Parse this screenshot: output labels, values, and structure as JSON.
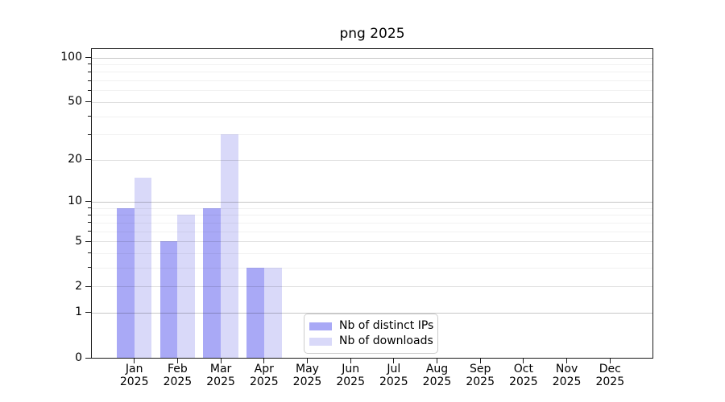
{
  "title": "png 2025",
  "chart_data": {
    "type": "bar",
    "title": "png 2025",
    "categories": [
      "Jan 2025",
      "Feb 2025",
      "Mar 2025",
      "Apr 2025",
      "May 2025",
      "Jun 2025",
      "Jul 2025",
      "Aug 2025",
      "Sep 2025",
      "Oct 2025",
      "Nov 2025",
      "Dec 2025"
    ],
    "series": [
      {
        "name": "Nb of distinct IPs",
        "color": "#a9a9f6",
        "values": [
          9,
          5,
          9,
          3,
          0,
          0,
          0,
          0,
          0,
          0,
          0,
          0
        ]
      },
      {
        "name": "Nb of downloads",
        "color": "#d9d9f9",
        "values": [
          15,
          8,
          30,
          3,
          0,
          0,
          0,
          0,
          0,
          0,
          0,
          0
        ]
      }
    ],
    "xlabel": "",
    "ylabel": "",
    "yscale": "log10(1+y)",
    "ylim": [
      0,
      114
    ],
    "yticks": [
      0,
      1,
      2,
      5,
      10,
      20,
      50,
      100
    ],
    "yticks_minor": [
      3,
      4,
      6,
      7,
      8,
      9,
      30,
      40,
      60,
      70,
      80,
      90
    ],
    "grid": "horizontal",
    "legend_position": "lower center"
  },
  "style": {
    "background": "#ffffff",
    "spine_color": "#1a1a1a",
    "text_color": "#000000",
    "grid_decade_color": "rgba(0,0,0,0.22)",
    "grid_labeled_color": "rgba(0,0,0,0.12)",
    "grid_minor_color": "rgba(0,0,0,0.055)",
    "legend_border_color": "#cccccc"
  }
}
